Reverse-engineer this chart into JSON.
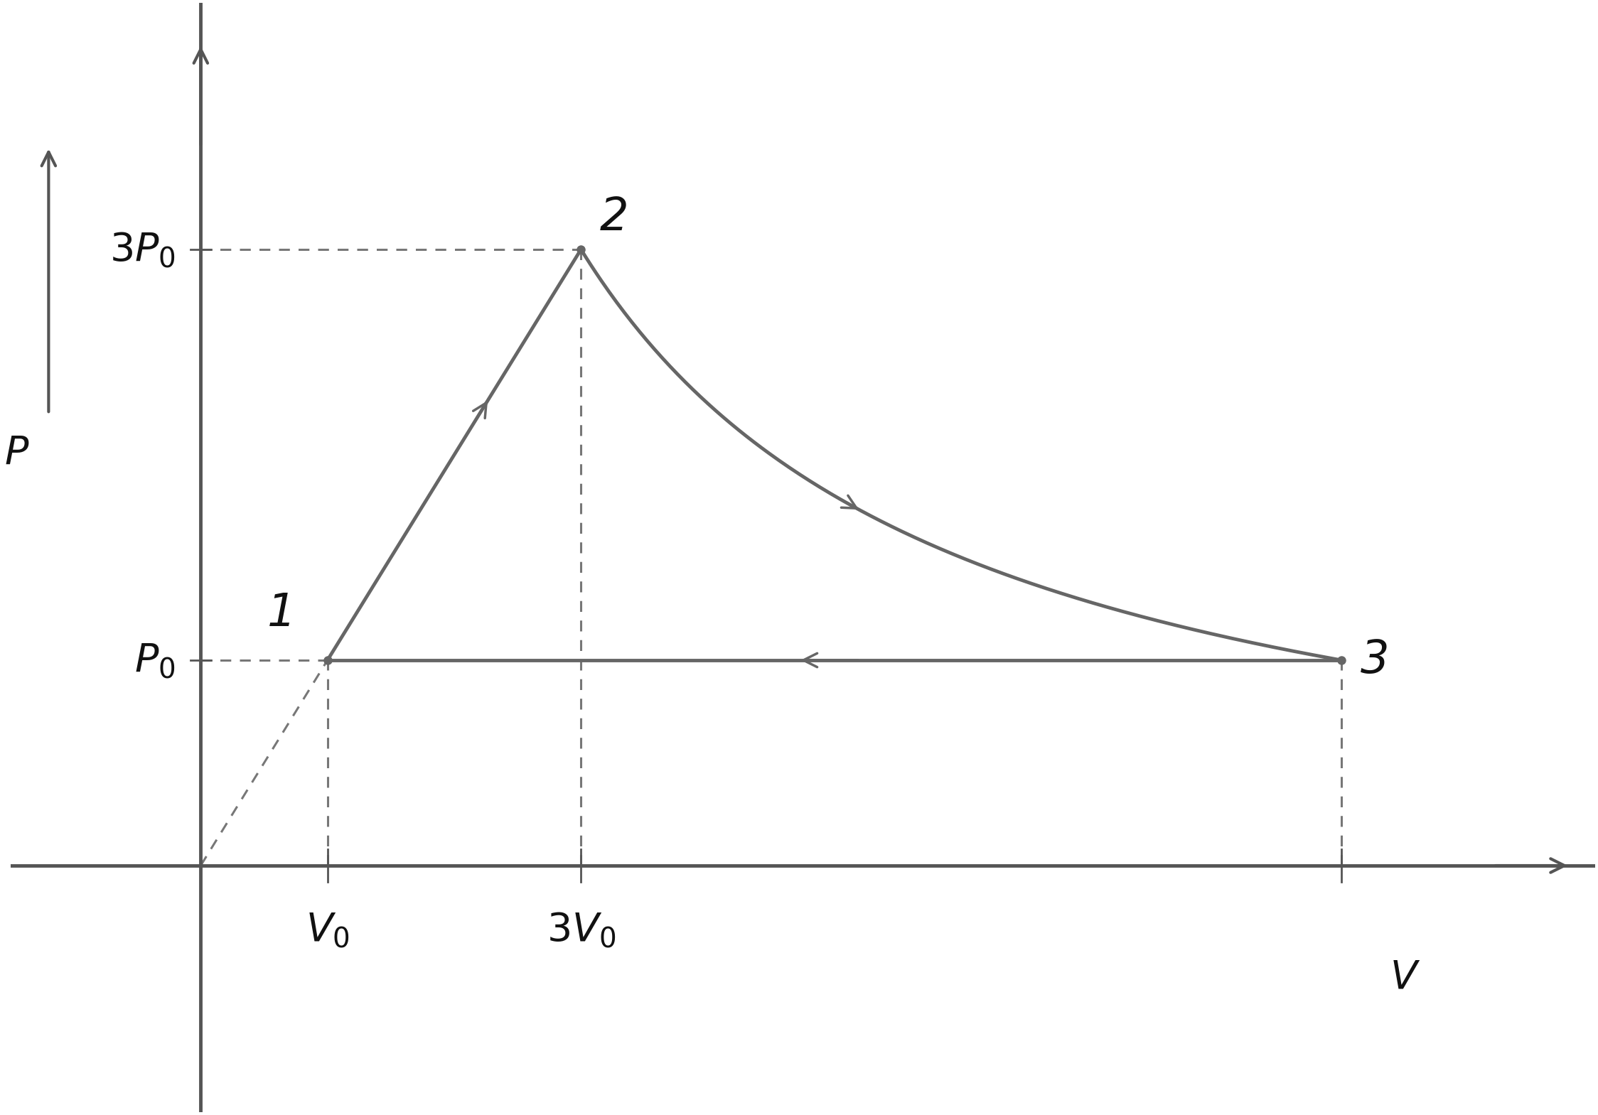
{
  "background_color": "#ffffff",
  "plot_bg_color": "#ffffff",
  "line_color": "#666666",
  "dashed_color": "#777777",
  "text_color": "#111111",
  "point1": [
    1,
    1
  ],
  "point2": [
    3,
    3
  ],
  "point3": [
    9,
    1
  ],
  "figsize": [
    22.48,
    15.69
  ],
  "dpi": 100,
  "xlim": [
    -1.5,
    11.0
  ],
  "ylim": [
    -1.2,
    4.2
  ],
  "label_P0": "$P_0$",
  "label_3P0": "$3P_0$",
  "label_V0": "$V_0$",
  "label_3V0": "$3V_0$",
  "label_V": "$V$",
  "label_P": "$P$",
  "pt1_label": "1",
  "pt2_label": "2",
  "pt3_label": "3"
}
